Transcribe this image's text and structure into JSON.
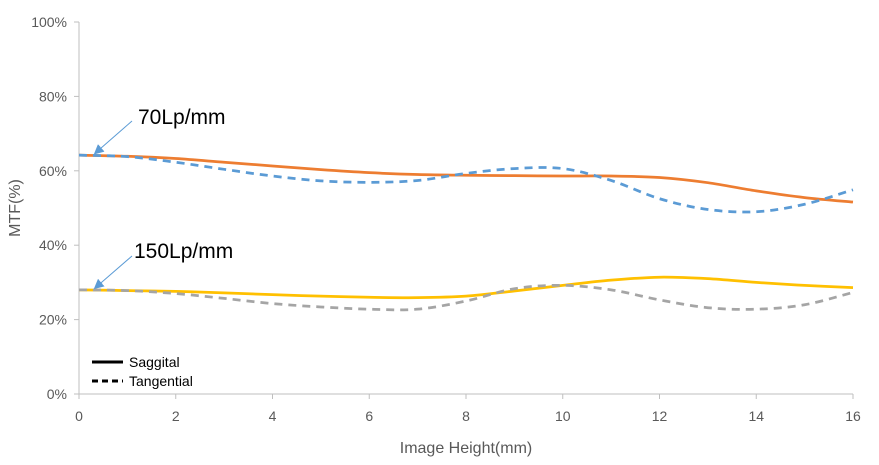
{
  "chart_data": {
    "type": "line",
    "xlabel": "Image Height(mm)",
    "ylabel": "MTF(%)",
    "xlim": [
      0,
      16
    ],
    "ylim": [
      0,
      100
    ],
    "x_ticks": [
      "0",
      "2",
      "4",
      "6",
      "8",
      "10",
      "12",
      "14",
      "16"
    ],
    "y_ticks": [
      "0%",
      "20%",
      "40%",
      "60%",
      "80%",
      "100%"
    ],
    "grid": false,
    "series": [
      {
        "line_style": "solid",
        "color": "#ED7D31",
        "x": [
          0,
          1,
          2,
          3,
          4,
          5,
          6,
          7,
          8,
          9,
          10,
          11,
          12,
          13,
          14,
          15,
          16
        ],
        "y": [
          64.2,
          63.9,
          63.3,
          62.3,
          61.3,
          60.3,
          59.5,
          59.0,
          58.8,
          58.7,
          58.6,
          58.6,
          58.2,
          56.8,
          54.6,
          52.8,
          51.6
        ]
      },
      {
        "line_style": "dashed",
        "color": "#5B9BD5",
        "x": [
          0,
          1,
          2,
          3,
          4,
          5,
          6,
          7,
          8,
          9,
          10,
          11,
          12,
          13,
          14,
          15,
          16
        ],
        "y": [
          64.2,
          63.8,
          62.3,
          60.4,
          58.6,
          57.3,
          56.9,
          57.4,
          59.3,
          60.6,
          60.6,
          57.4,
          52.5,
          49.6,
          49.0,
          51.0,
          54.9
        ]
      },
      {
        "line_style": "solid",
        "color": "#FFC000",
        "x": [
          0,
          1,
          2,
          3,
          4,
          5,
          6,
          7,
          8,
          9,
          10,
          11,
          12,
          13,
          14,
          15,
          16
        ],
        "y": [
          28.0,
          27.8,
          27.6,
          27.2,
          26.7,
          26.3,
          26.0,
          25.9,
          26.3,
          27.7,
          29.2,
          30.6,
          31.4,
          31.0,
          30.0,
          29.2,
          28.6
        ]
      },
      {
        "line_style": "dashed",
        "color": "#A5A5A5",
        "x": [
          0,
          1,
          2,
          3,
          4,
          5,
          6,
          7,
          8,
          9,
          10,
          11,
          12,
          13,
          14,
          15,
          16
        ],
        "y": [
          28.0,
          27.8,
          27.0,
          25.7,
          24.3,
          23.4,
          22.8,
          22.8,
          25.0,
          28.3,
          29.2,
          28.0,
          25.3,
          23.2,
          22.8,
          24.0,
          27.3
        ]
      }
    ],
    "annotations": [
      {
        "text": "70Lp/mm",
        "points_to": {
          "x": 0.3,
          "y": 64.2
        }
      },
      {
        "text": "150Lp/mm",
        "points_to": {
          "x": 0.3,
          "y": 28.0
        }
      }
    ],
    "legend": {
      "placement": "bottom-left",
      "entries": [
        {
          "label": "Saggital",
          "line_style": "solid"
        },
        {
          "label": "Tangential",
          "line_style": "dashed"
        }
      ]
    }
  }
}
